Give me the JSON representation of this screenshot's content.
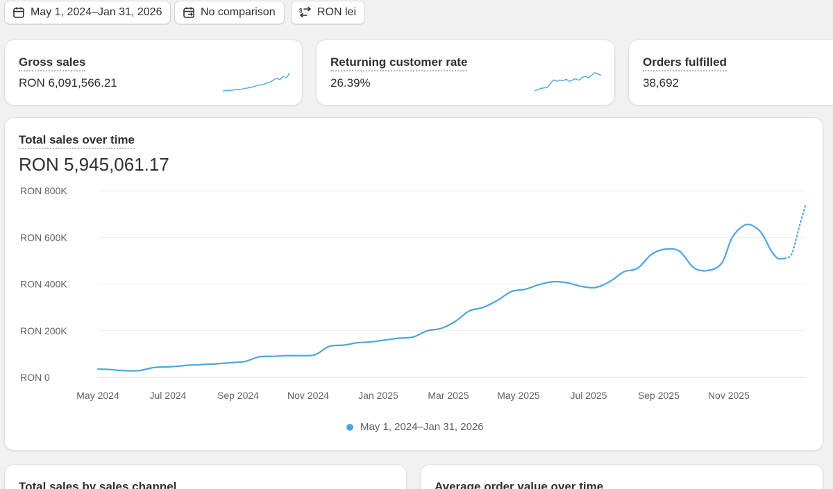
{
  "filters": {
    "date_range": "May 1, 2024–Jan 31, 2026",
    "comparison": "No comparison",
    "currency": "RON lei"
  },
  "metrics": [
    {
      "title": "Gross sales",
      "value": "RON 6,091,566.21",
      "sparkline": [
        3,
        3.2,
        3.5,
        3.6,
        4,
        4.2,
        4.5,
        5,
        5.5,
        6,
        6.8,
        7.5,
        8,
        8.6,
        9.5,
        10.5,
        12,
        13.5,
        12.5,
        15,
        14,
        18
      ]
    },
    {
      "title": "Returning customer rate",
      "value": "26.39%",
      "sparkline": [
        3,
        4,
        5,
        5.5,
        6,
        9,
        12,
        11,
        12,
        11.5,
        12.5,
        11,
        12,
        13,
        12,
        14,
        15,
        14,
        16,
        18,
        17,
        16
      ]
    },
    {
      "title": "Orders fulfilled",
      "value": "38,692"
    }
  ],
  "total_sales": {
    "title": "Total sales over time",
    "total": "RON 5,945,061.17",
    "legend": "May 1, 2024–Jan 31, 2026"
  },
  "bottom_cards": {
    "left_title": "Total sales by sales channel",
    "right_title": "Average order value over time"
  },
  "colors": {
    "accent": "#4ba6e0"
  },
  "chart_data": {
    "type": "line",
    "title": "Total sales over time",
    "xlabel": "",
    "ylabel": "",
    "y_tick_labels": [
      "RON 0",
      "RON 200K",
      "RON 400K",
      "RON 600K",
      "RON 800K"
    ],
    "y_ticks": [
      0,
      200000,
      400000,
      600000,
      800000
    ],
    "ylim": [
      0,
      800000
    ],
    "x_tick_labels": [
      "May 2024",
      "Jul 2024",
      "Sep 2024",
      "Nov 2024",
      "Jan 2025",
      "Mar 2025",
      "May 2025",
      "Jul 2025",
      "Sep 2025",
      "Nov 2025"
    ],
    "x_tick_index": [
      0,
      2,
      4,
      6,
      8,
      10,
      12,
      14,
      16,
      18
    ],
    "x_range": [
      0,
      20.2
    ],
    "grid": true,
    "legend_position": "bottom-center",
    "series": [
      {
        "name": "May 1, 2024–Jan 31, 2026",
        "points": [
          [
            0,
            35000
          ],
          [
            0.3,
            34000
          ],
          [
            0.6,
            30000
          ],
          [
            0.9,
            28000
          ],
          [
            1.2,
            29000
          ],
          [
            1.6,
            42000
          ],
          [
            2,
            45000
          ],
          [
            2.3,
            48000
          ],
          [
            2.6,
            52000
          ],
          [
            3,
            55000
          ],
          [
            3.4,
            58000
          ],
          [
            3.8,
            63000
          ],
          [
            4.2,
            68000
          ],
          [
            4.6,
            88000
          ],
          [
            5,
            90000
          ],
          [
            5.4,
            93000
          ],
          [
            5.8,
            93000
          ],
          [
            6.2,
            97000
          ],
          [
            6.6,
            133000
          ],
          [
            7,
            138000
          ],
          [
            7.4,
            148000
          ],
          [
            7.8,
            152000
          ],
          [
            8.2,
            160000
          ],
          [
            8.6,
            168000
          ],
          [
            9,
            173000
          ],
          [
            9.4,
            200000
          ],
          [
            9.8,
            210000
          ],
          [
            10.2,
            240000
          ],
          [
            10.6,
            285000
          ],
          [
            11,
            300000
          ],
          [
            11.4,
            330000
          ],
          [
            11.8,
            368000
          ],
          [
            12.2,
            378000
          ],
          [
            12.6,
            398000
          ],
          [
            13,
            410000
          ],
          [
            13.4,
            405000
          ],
          [
            13.8,
            390000
          ],
          [
            14.2,
            385000
          ],
          [
            14.6,
            410000
          ],
          [
            15,
            452000
          ],
          [
            15.4,
            468000
          ],
          [
            15.8,
            528000
          ],
          [
            16.2,
            550000
          ],
          [
            16.6,
            540000
          ],
          [
            17,
            470000
          ],
          [
            17.4,
            458000
          ],
          [
            17.8,
            490000
          ],
          [
            18.1,
            600000
          ],
          [
            18.5,
            655000
          ],
          [
            18.9,
            625000
          ],
          [
            19.2,
            545000
          ],
          [
            19.4,
            510000
          ],
          [
            19.6,
            510000
          ]
        ],
        "projection": [
          [
            19.6,
            510000
          ],
          [
            19.8,
            530000
          ],
          [
            20,
            640000
          ],
          [
            20.2,
            745000
          ]
        ]
      }
    ]
  }
}
